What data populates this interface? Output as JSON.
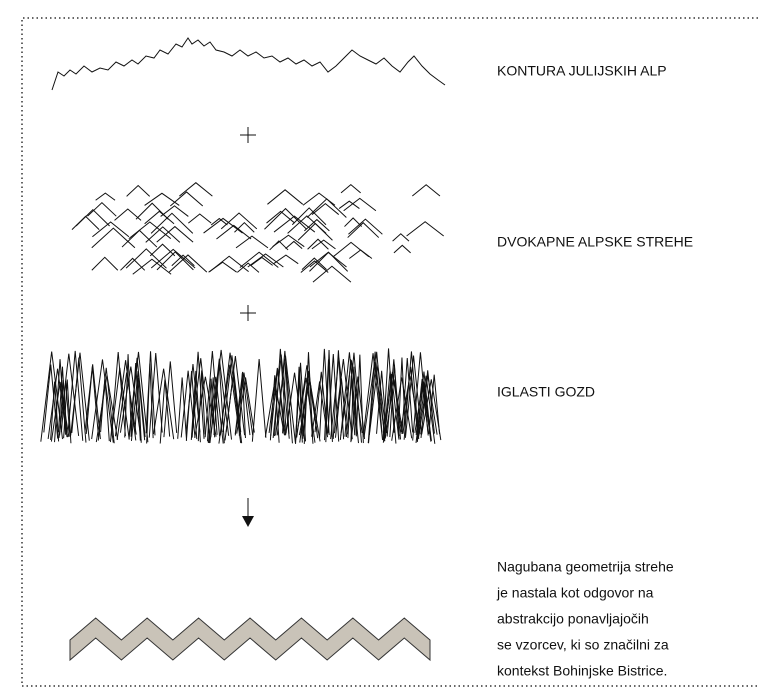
{
  "labels": {
    "contour": "KONTURA JULIJSKIH ALP",
    "roofs": "DVOKAPNE ALPSKE STREHE",
    "forest": "IGLASTI GOZD"
  },
  "description": [
    "Nagubana geometrija strehe",
    "je nastala kot odgovor na",
    "abstrakcijo ponavljajočih",
    "se vzorcev, ki so značilni za",
    "kontekst Bohinjske Bistrice."
  ]
}
